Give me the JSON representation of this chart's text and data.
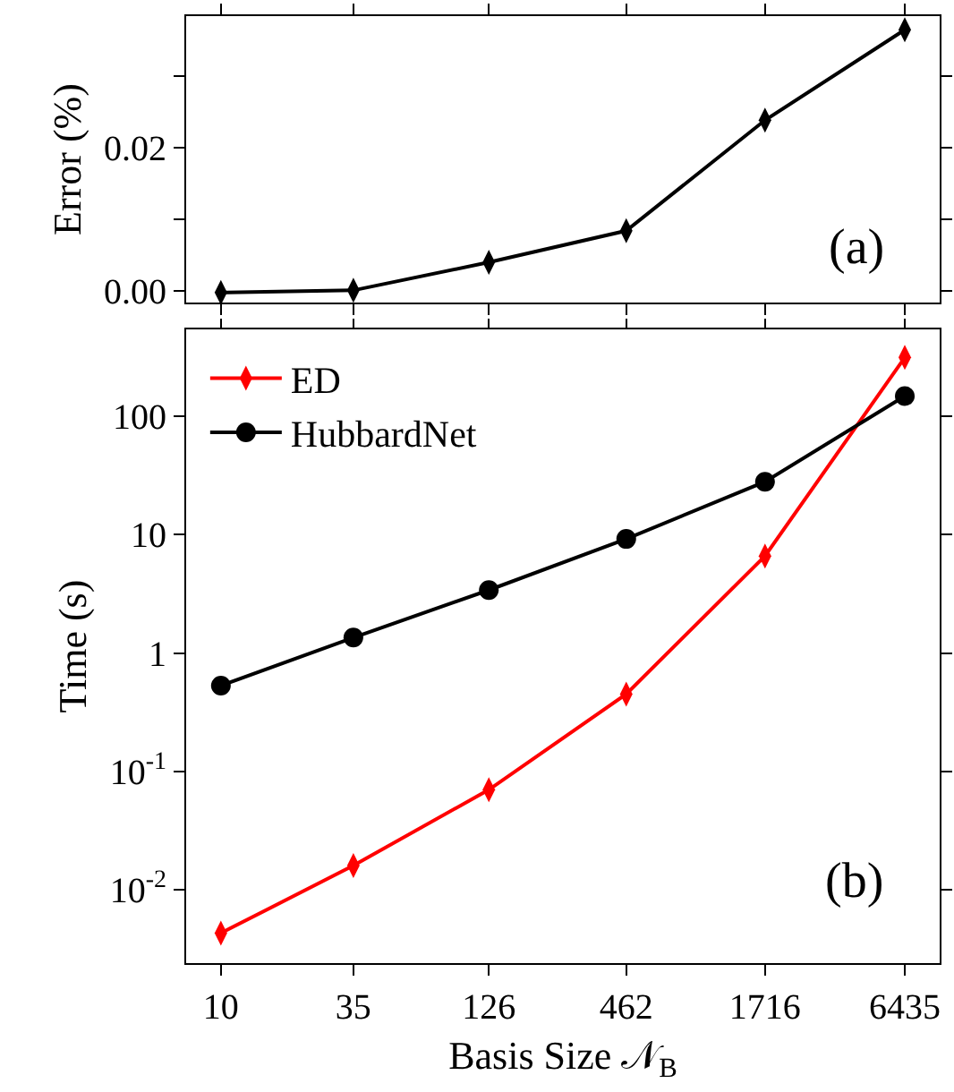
{
  "chart_data": [
    {
      "type": "line",
      "ylabel": "Error (%)",
      "annotations": [
        "(a)"
      ],
      "x": [
        10,
        35,
        126,
        462,
        1716,
        6435
      ],
      "log": "x",
      "tick_labels": "y",
      "marker": "diamond",
      "grid": false,
      "legend": false,
      "series": [
        {
          "color": "#000000",
          "values": [
            -0.0002,
            0.0001,
            0.004,
            0.0084,
            0.0238,
            0.0364
          ]
        }
      ],
      "xlim": [
        7.2,
        8950
      ],
      "xticks": [
        10,
        35,
        126,
        462,
        1716,
        6435
      ],
      "ylim": [
        -0.0016,
        0.0383
      ],
      "yticks": [
        {
          "value": 0,
          "label": "0.00"
        },
        {
          "value": 0.01,
          "label": null
        },
        {
          "value": 0.02,
          "label": "0.02"
        },
        {
          "value": 0.03,
          "label": null
        }
      ]
    },
    {
      "type": "line",
      "xlabel": "Basis Size 𝒩$_{B}$",
      "ylabel": "Time (s)",
      "annotations": [
        "(b)"
      ],
      "x": [
        10,
        35,
        126,
        462,
        1716,
        6435
      ],
      "log": "xy",
      "grid": false,
      "legend": "top left",
      "series": [
        {
          "name": "ED",
          "color": "#ff0000",
          "marker": "diamond",
          "values": [
            0.0043,
            0.016,
            0.07,
            0.45,
            6.6,
            314
          ]
        },
        {
          "name": "HubbardNet",
          "color": "#000000",
          "marker": "circle",
          "values": [
            0.53,
            1.35,
            3.4,
            9.2,
            28,
            148
          ]
        }
      ],
      "xlim": [
        7.2,
        8950
      ],
      "xticks": [
        10,
        35,
        126,
        462,
        1716,
        6435
      ],
      "ylim": [
        0.0024,
        542
      ],
      "yticks": [
        {
          "value": 0.01,
          "label": "10$^{-2}$"
        },
        {
          "value": 0.1,
          "label": "10$^{-1}$"
        },
        1,
        10,
        100
      ]
    }
  ]
}
